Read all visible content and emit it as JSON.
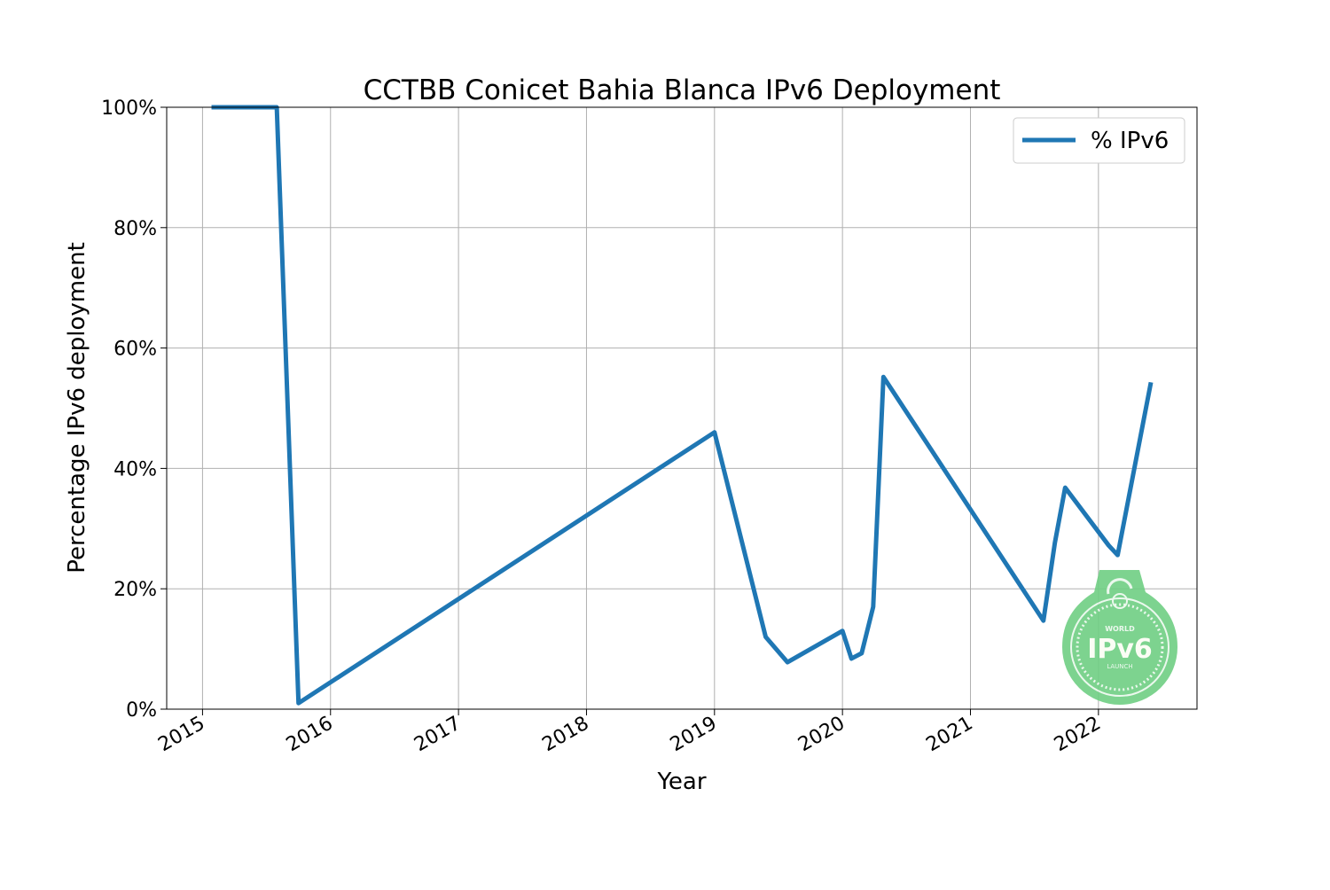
{
  "chart_data": {
    "type": "line",
    "title": "CCTBB Conicet Bahia Blanca IPv6 Deployment",
    "xlabel": "Year",
    "ylabel": "Percentage IPv6 deployment",
    "xlim": [
      2014.72,
      2022.77
    ],
    "ylim": [
      0,
      100
    ],
    "x_ticks": [
      "2015",
      "2016",
      "2017",
      "2018",
      "2019",
      "2020",
      "2021",
      "2022"
    ],
    "y_ticks": [
      "0%",
      "20%",
      "40%",
      "60%",
      "80%",
      "100%"
    ],
    "grid": true,
    "legend_position": "top-right",
    "series": [
      {
        "name": "% IPv6",
        "color": "#1f77b4",
        "x": [
          2015.07,
          2015.58,
          2015.75,
          2019.0,
          2019.4,
          2019.57,
          2020.0,
          2020.07,
          2020.15,
          2020.24,
          2020.32,
          2021.57,
          2021.66,
          2021.74,
          2022.08,
          2022.15,
          2022.41
        ],
        "y": [
          100,
          100,
          1,
          46,
          12,
          7.8,
          13,
          8.4,
          9.3,
          17,
          55.2,
          14.7,
          27.7,
          36.8,
          27.2,
          25.6,
          54.3
        ]
      }
    ]
  },
  "logo": {
    "text_top": "WORLD",
    "text_main": "IPv6",
    "text_bottom": "LAUNCH",
    "color": "#6fcf83"
  }
}
